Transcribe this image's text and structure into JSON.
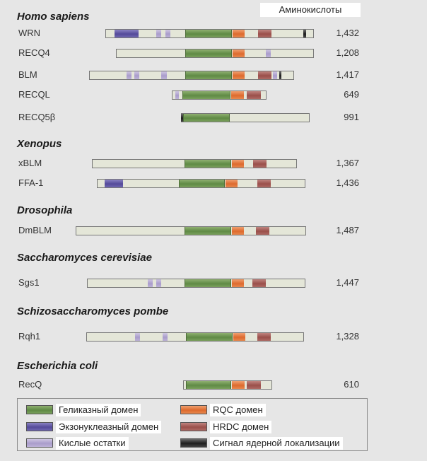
{
  "header": {
    "amino_label": "Аминокислоты"
  },
  "groups": [
    {
      "species": "Homo sapiens",
      "proteins": [
        {
          "name": "WRN",
          "length": "1,432",
          "domains": [
            {
              "type": "bar",
              "start": 149,
              "end": 444
            },
            {
              "type": "exo",
              "start": 162,
              "end": 196
            },
            {
              "type": "acid",
              "start": 221,
              "end": 228
            },
            {
              "type": "acid",
              "start": 234,
              "end": 241
            },
            {
              "type": "heli",
              "start": 262,
              "end": 328
            },
            {
              "type": "rqc",
              "start": 329,
              "end": 346
            },
            {
              "type": "hrdc",
              "start": 365,
              "end": 384
            },
            {
              "type": "nls",
              "start": 429,
              "end": 433
            }
          ]
        },
        {
          "name": "RECQ4",
          "length": "1,208",
          "domains": [
            {
              "type": "bar",
              "start": 164,
              "end": 444
            },
            {
              "type": "heli",
              "start": 262,
              "end": 328
            },
            {
              "type": "rqc",
              "start": 329,
              "end": 346
            },
            {
              "type": "acid",
              "start": 376,
              "end": 383
            }
          ]
        },
        {
          "name": "BLM",
          "length": "1,417",
          "domains": [
            {
              "type": "bar",
              "start": 126,
              "end": 416
            },
            {
              "type": "acid",
              "start": 179,
              "end": 186
            },
            {
              "type": "acid",
              "start": 190,
              "end": 197
            },
            {
              "type": "acid",
              "start": 228,
              "end": 236
            },
            {
              "type": "heli",
              "start": 262,
              "end": 328
            },
            {
              "type": "rqc",
              "start": 329,
              "end": 346
            },
            {
              "type": "hrdc",
              "start": 365,
              "end": 384
            },
            {
              "type": "acid",
              "start": 386,
              "end": 392
            },
            {
              "type": "nls",
              "start": 395,
              "end": 398
            }
          ]
        },
        {
          "name": "RECQL",
          "length": "649",
          "domains": [
            {
              "type": "bar",
              "start": 243,
              "end": 377
            },
            {
              "type": "acid",
              "start": 248,
              "end": 253
            },
            {
              "type": "heli",
              "start": 258,
              "end": 326
            },
            {
              "type": "rqc",
              "start": 327,
              "end": 345
            },
            {
              "type": "hrdc",
              "start": 349,
              "end": 369
            }
          ]
        },
        {
          "name": "RECQ5β",
          "length": "991",
          "domains": [
            {
              "type": "bar",
              "start": 256,
              "end": 438
            },
            {
              "type": "nls",
              "start": 256,
              "end": 259
            },
            {
              "type": "heli",
              "start": 259,
              "end": 325
            }
          ]
        }
      ]
    },
    {
      "species": "Xenopus",
      "proteins": [
        {
          "name": "xBLM",
          "length": "1,367",
          "domains": [
            {
              "type": "bar",
              "start": 130,
              "end": 420
            },
            {
              "type": "heli",
              "start": 261,
              "end": 327
            },
            {
              "type": "rqc",
              "start": 328,
              "end": 345
            },
            {
              "type": "hrdc",
              "start": 358,
              "end": 377
            }
          ]
        },
        {
          "name": "FFA-1",
          "length": "1,436",
          "domains": [
            {
              "type": "bar",
              "start": 137,
              "end": 432
            },
            {
              "type": "exo",
              "start": 148,
              "end": 174
            },
            {
              "type": "heli",
              "start": 253,
              "end": 318
            },
            {
              "type": "rqc",
              "start": 319,
              "end": 336
            },
            {
              "type": "hrdc",
              "start": 364,
              "end": 383
            }
          ]
        }
      ]
    },
    {
      "species": "Drosophila",
      "proteins": [
        {
          "name": "DmBLM",
          "length": "1,487",
          "domains": [
            {
              "type": "bar",
              "start": 107,
              "end": 433
            },
            {
              "type": "heli",
              "start": 261,
              "end": 327
            },
            {
              "type": "rqc",
              "start": 328,
              "end": 345
            },
            {
              "type": "hrdc",
              "start": 362,
              "end": 381
            }
          ]
        }
      ]
    },
    {
      "species": "Saccharomyces cerevisiae",
      "proteins": [
        {
          "name": "Sgs1",
          "length": "1,447",
          "domains": [
            {
              "type": "bar",
              "start": 123,
              "end": 432
            },
            {
              "type": "acid",
              "start": 209,
              "end": 216
            },
            {
              "type": "acid",
              "start": 221,
              "end": 228
            },
            {
              "type": "heli",
              "start": 261,
              "end": 327
            },
            {
              "type": "rqc",
              "start": 328,
              "end": 345
            },
            {
              "type": "hrdc",
              "start": 357,
              "end": 376
            }
          ]
        }
      ]
    },
    {
      "species": "Schizosaccharomyces pombe",
      "proteins": [
        {
          "name": "Rqh1",
          "length": "1,328",
          "domains": [
            {
              "type": "bar",
              "start": 122,
              "end": 430
            },
            {
              "type": "acid",
              "start": 191,
              "end": 198
            },
            {
              "type": "acid",
              "start": 230,
              "end": 237
            },
            {
              "type": "heli",
              "start": 263,
              "end": 329
            },
            {
              "type": "rqc",
              "start": 330,
              "end": 347
            },
            {
              "type": "hrdc",
              "start": 364,
              "end": 383
            }
          ]
        }
      ]
    },
    {
      "species": "Escherichia coli",
      "proteins": [
        {
          "name": "RecQ",
          "length": "610",
          "domains": [
            {
              "type": "bar",
              "start": 259,
              "end": 385
            },
            {
              "type": "heli",
              "start": 263,
              "end": 327
            },
            {
              "type": "rqc",
              "start": 328,
              "end": 346
            },
            {
              "type": "hrdc",
              "start": 349,
              "end": 369
            }
          ]
        }
      ]
    }
  ],
  "legend": [
    {
      "key": "heli",
      "label": "Геликазный домен"
    },
    {
      "key": "exo",
      "label": "Экзонуклеазный домен"
    },
    {
      "key": "acid",
      "label": "Кислые остатки"
    },
    {
      "key": "rqc",
      "label": "RQC домен"
    },
    {
      "key": "hrdc",
      "label": "HRDC домен"
    },
    {
      "key": "nls",
      "label": "Сигнал ядерной локализации"
    }
  ]
}
